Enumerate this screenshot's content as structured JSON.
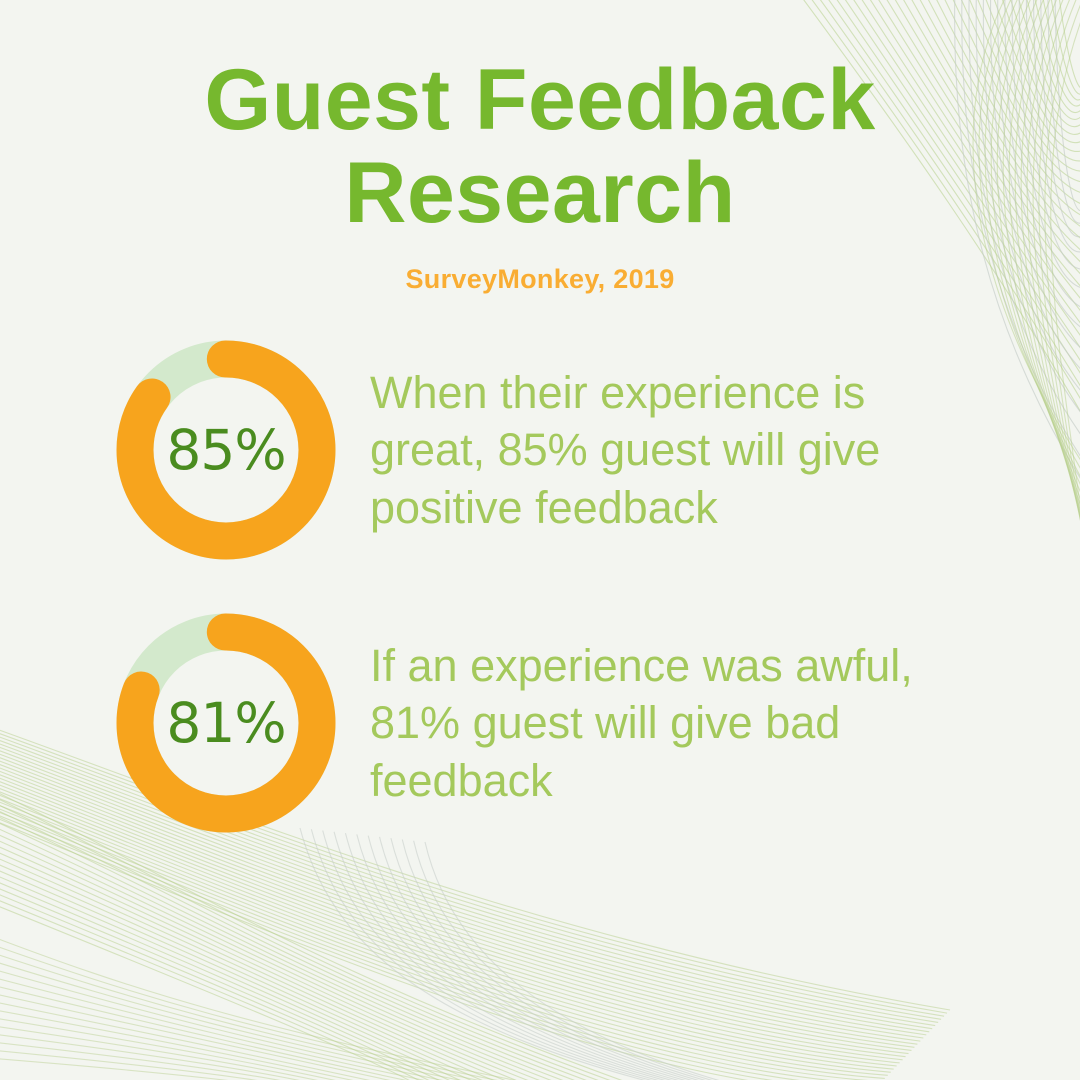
{
  "header": {
    "title_line1": "Guest Feedback",
    "title_line2": "Research",
    "source": "SurveyMonkey, 2019"
  },
  "chart_data": [
    {
      "type": "donut",
      "label": "85%",
      "value": 85,
      "unit": "%",
      "description": "When their experience is great, 85% guest will give positive feedback",
      "arc_color": "#f7a41d",
      "track_color": "#d3e9cc",
      "label_color": "#4a8c1f"
    },
    {
      "type": "donut",
      "label": "81%",
      "value": 81,
      "unit": "%",
      "description": "If an experience was awful, 81% guest will give bad feedback",
      "arc_color": "#f7a41d",
      "track_color": "#d3e9cc",
      "label_color": "#4a8c1f"
    }
  ],
  "colors": {
    "background": "#f3f5f0",
    "title_green": "#76b82e",
    "subtitle_orange": "#f9ad33",
    "body_text_green": "#a4c95c",
    "value_text_green": "#4a8c1f",
    "ring_orange": "#f7a41d",
    "ring_track_green": "#d3e9cc",
    "deco_line_green": "#b7cf8c",
    "deco_line_gray": "#c5ccc8"
  }
}
